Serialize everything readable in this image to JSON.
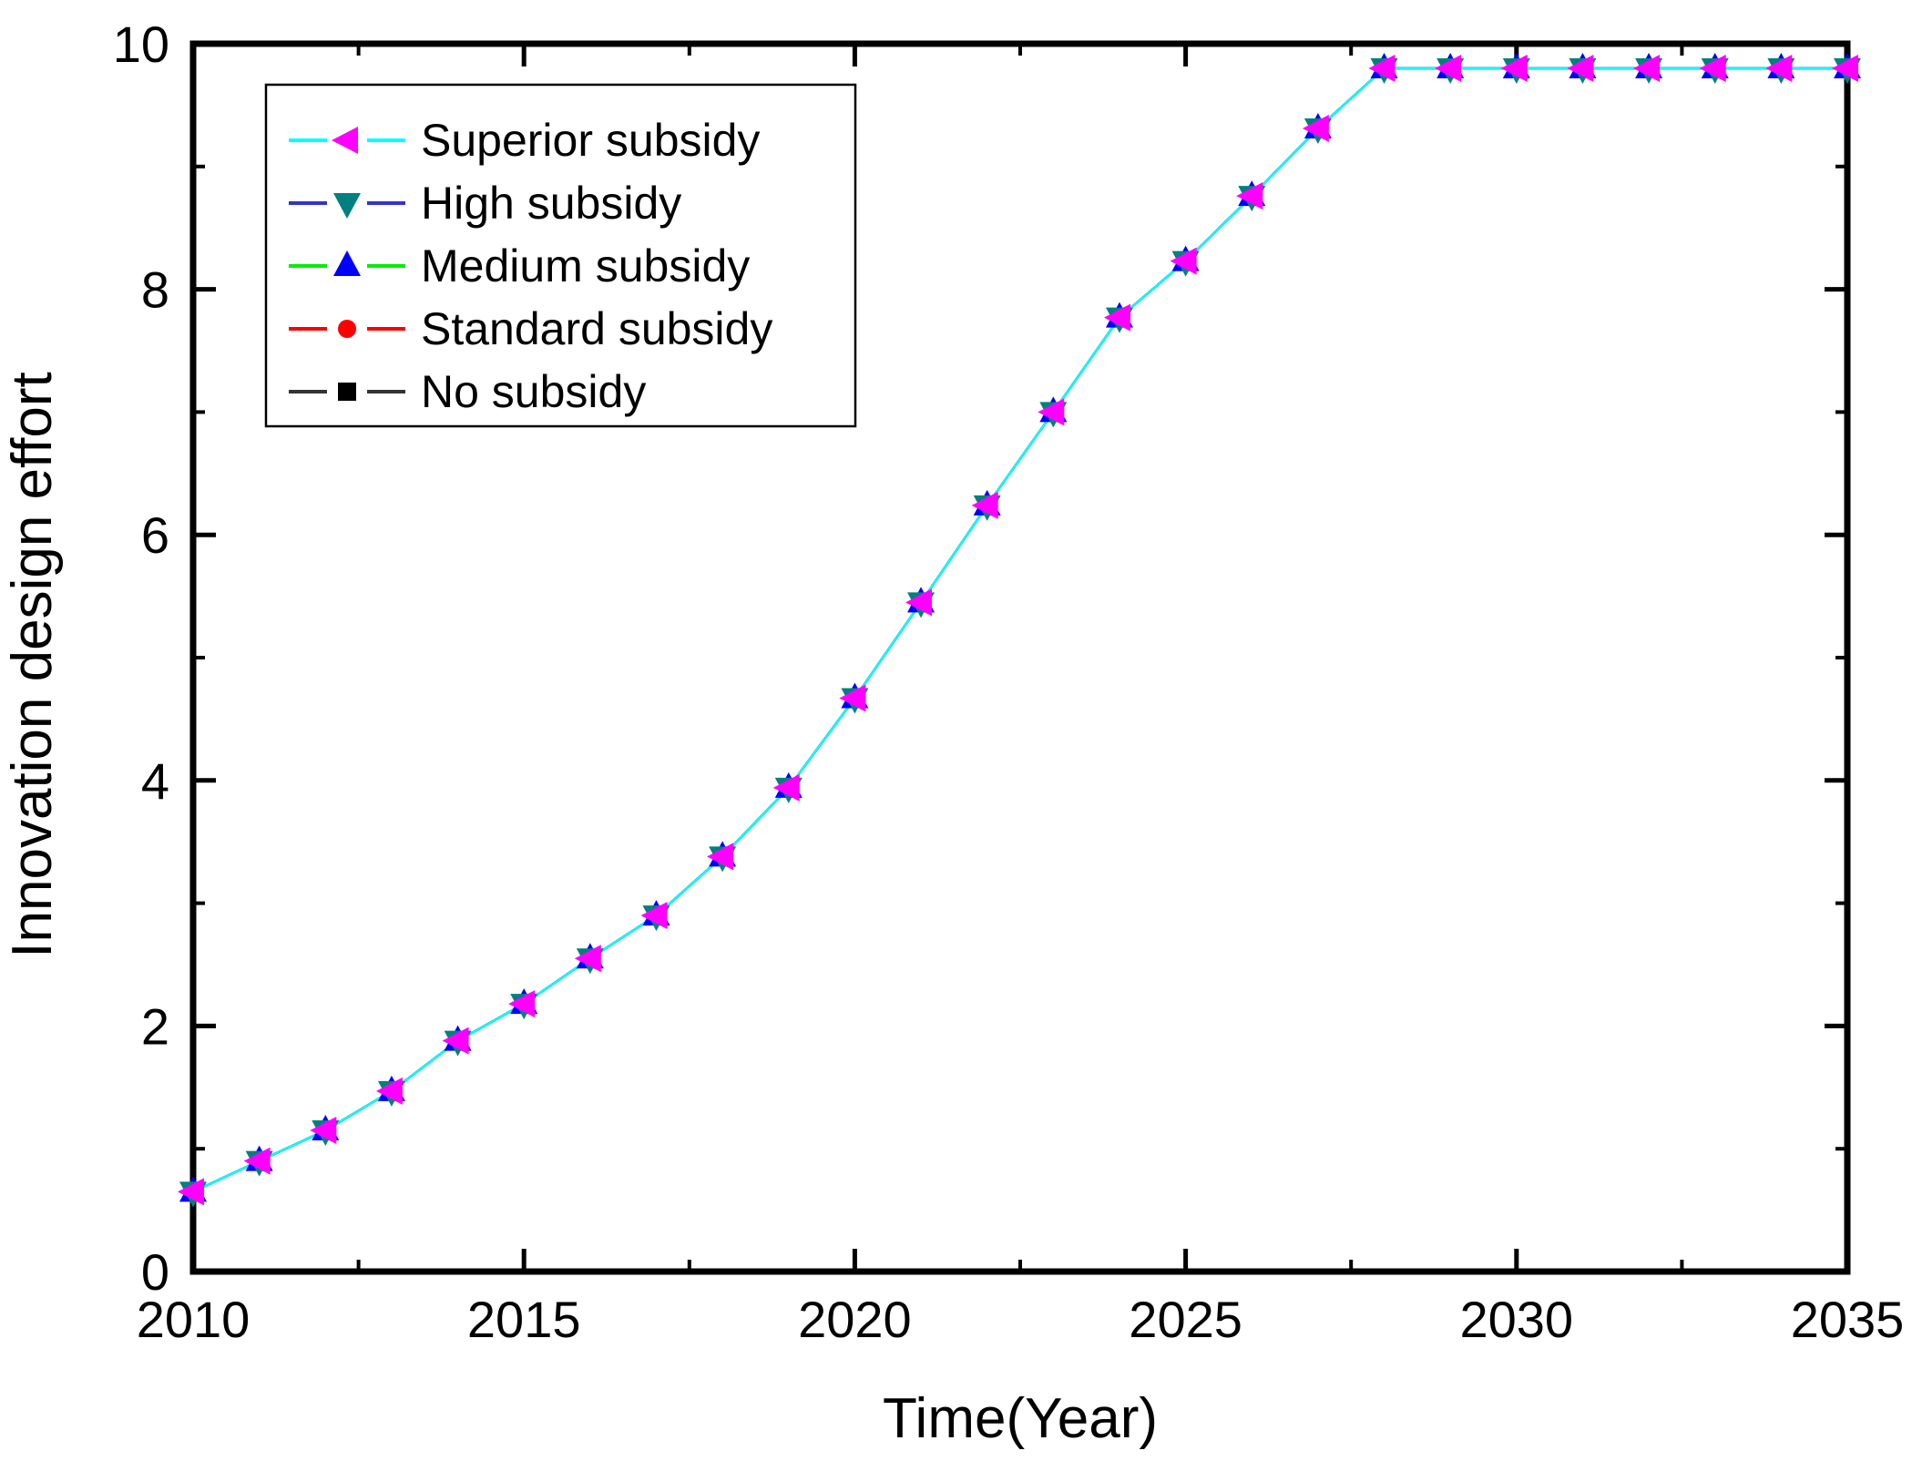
{
  "figure": {
    "background": "#FFFFFF",
    "axis_color": "#000000",
    "text_color": "#000000"
  },
  "chart_data": {
    "type": "line",
    "title": "",
    "xlabel": "Time(Year)",
    "ylabel": "Innovation design effort",
    "xlim": [
      2010,
      2035
    ],
    "ylim": [
      0,
      10
    ],
    "x_major_ticks": [
      2010,
      2015,
      2020,
      2025,
      2030,
      2035
    ],
    "x_minor_ticks": [
      2012.5,
      2017.5,
      2022.5,
      2027.5,
      2032.5
    ],
    "y_major_ticks": [
      0,
      2,
      4,
      6,
      8,
      10
    ],
    "y_minor_ticks": [
      1,
      3,
      5,
      7,
      9
    ],
    "grid": false,
    "legend_position": "top-left",
    "x": [
      2010,
      2011,
      2012,
      2013,
      2014,
      2015,
      2016,
      2017,
      2018,
      2019,
      2020,
      2021,
      2022,
      2023,
      2024,
      2025,
      2026,
      2027,
      2028,
      2029,
      2030,
      2031,
      2032,
      2033,
      2034,
      2035
    ],
    "series": [
      {
        "name": "Superior subsidy",
        "line_color": "#00FFFF",
        "marker_shape": "triangle-left",
        "marker_color": "#FF00FF",
        "values": [
          0.65,
          0.9,
          1.15,
          1.47,
          1.88,
          2.18,
          2.55,
          2.9,
          3.38,
          3.94,
          4.67,
          5.45,
          6.24,
          7.0,
          7.77,
          8.23,
          8.76,
          9.31,
          9.8,
          9.8,
          9.8,
          9.8,
          9.8,
          9.8,
          9.8,
          9.8
        ]
      },
      {
        "name": "High subsidy",
        "line_color": "#3333CC",
        "marker_shape": "triangle-down",
        "marker_color": "#008080",
        "values": [
          0.65,
          0.9,
          1.15,
          1.47,
          1.88,
          2.18,
          2.55,
          2.9,
          3.38,
          3.94,
          4.67,
          5.45,
          6.24,
          7.0,
          7.77,
          8.23,
          8.76,
          9.31,
          9.8,
          9.8,
          9.8,
          9.8,
          9.8,
          9.8,
          9.8,
          9.8
        ]
      },
      {
        "name": "Medium subsidy",
        "line_color": "#00EE00",
        "marker_shape": "triangle-up",
        "marker_color": "#0000FF",
        "values": [
          0.65,
          0.9,
          1.15,
          1.47,
          1.88,
          2.18,
          2.55,
          2.9,
          3.38,
          3.94,
          4.67,
          5.45,
          6.24,
          7.0,
          7.77,
          8.23,
          8.76,
          9.31,
          9.8,
          9.8,
          9.8,
          9.8,
          9.8,
          9.8,
          9.8,
          9.8
        ]
      },
      {
        "name": "Standard subsidy",
        "line_color": "#FF0000",
        "marker_shape": "circle",
        "marker_color": "#FF0000",
        "values": [
          0.65,
          0.9,
          1.15,
          1.47,
          1.88,
          2.18,
          2.55,
          2.9,
          3.38,
          3.94,
          4.67,
          5.45,
          6.24,
          7.0,
          7.77,
          8.23,
          8.76,
          9.31,
          9.8,
          9.8,
          9.8,
          9.8,
          9.8,
          9.8,
          9.8,
          9.8
        ]
      },
      {
        "name": "No subsidy",
        "line_color": "#333333",
        "marker_shape": "square",
        "marker_color": "#000000",
        "values": [
          0.65,
          0.9,
          1.15,
          1.47,
          1.88,
          2.18,
          2.55,
          2.9,
          3.38,
          3.94,
          4.67,
          5.45,
          6.24,
          7.0,
          7.77,
          8.23,
          8.76,
          9.31,
          9.8,
          9.8,
          9.8,
          9.8,
          9.8,
          9.8,
          9.8,
          9.8
        ]
      }
    ]
  }
}
